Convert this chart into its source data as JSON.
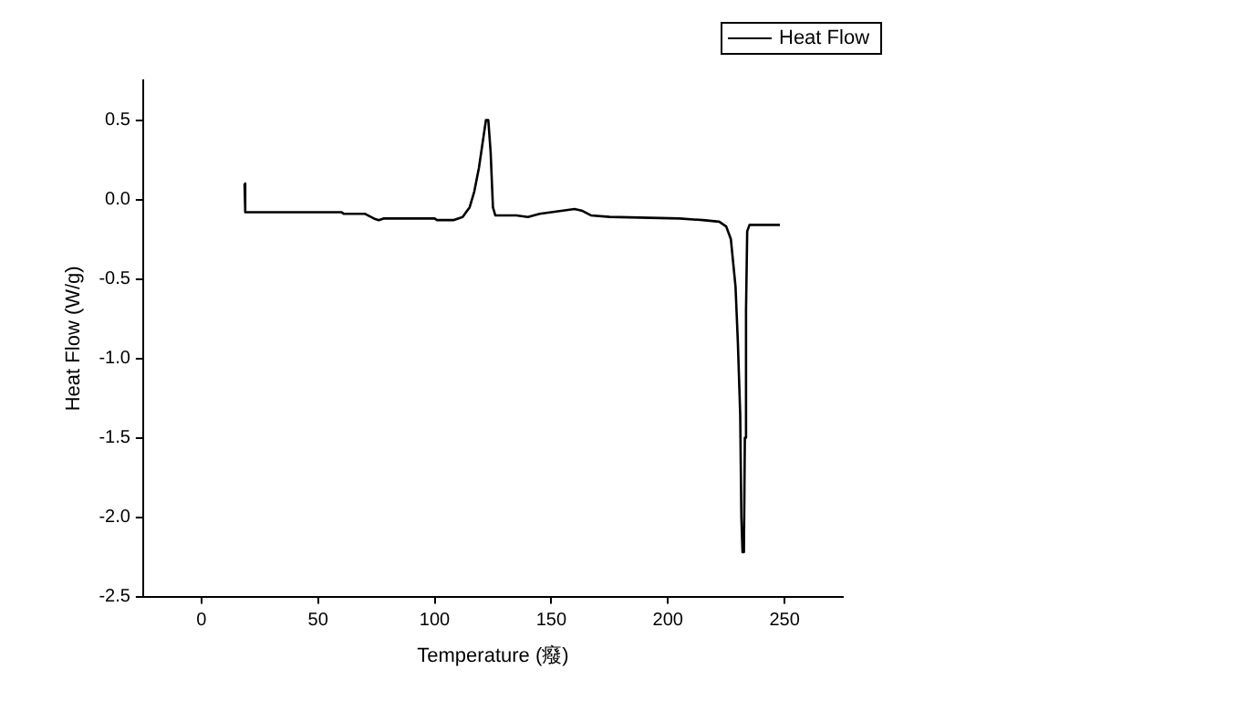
{
  "chart_data": {
    "type": "line",
    "xlabel": "Temperature (癈)",
    "ylabel": "Heat Flow (W/g)",
    "xlim": [
      -25,
      275
    ],
    "xticks": [
      0,
      50,
      100,
      150,
      200,
      250
    ],
    "ylim": [
      -2.5,
      0.75
    ],
    "yticks": [
      -2.5,
      {
        "value": -2,
        "label": "-2.0"
      },
      -1.5,
      {
        "value": -1,
        "label": "-1.0"
      },
      -0.5,
      {
        "value": 0,
        "label": "0.0"
      },
      0.5
    ],
    "grid": false,
    "legend": "top right",
    "marker": "none",
    "line_style": "solid",
    "series": [
      {
        "name": "Heat Flow",
        "color": "#000000",
        "x": [
          18.5,
          18.8,
          60,
          61,
          70,
          74,
          76,
          78,
          100,
          101,
          108,
          112,
          115,
          117,
          119,
          121,
          122,
          123,
          124,
          125,
          126,
          135,
          140,
          145,
          150,
          155,
          160,
          163,
          167,
          175,
          205,
          215,
          222,
          225,
          227,
          229,
          230,
          231,
          231.5,
          232,
          232.6,
          233,
          233.5,
          234,
          235,
          248
        ],
        "values": [
          0.1,
          -0.08,
          -0.08,
          -0.09,
          -0.09,
          -0.12,
          -0.13,
          -0.12,
          -0.12,
          -0.13,
          -0.13,
          -0.11,
          -0.05,
          0.05,
          0.2,
          0.4,
          0.5,
          0.5,
          0.3,
          -0.05,
          -0.1,
          -0.1,
          -0.11,
          -0.09,
          -0.08,
          -0.07,
          -0.06,
          -0.07,
          -0.1,
          -0.11,
          -0.12,
          -0.13,
          -0.14,
          -0.17,
          -0.25,
          -0.55,
          -0.9,
          -1.35,
          -2.0,
          -2.22,
          -2.2,
          -1.5,
          -0.7,
          -0.2,
          -0.16,
          -0.16
        ]
      }
    ]
  }
}
